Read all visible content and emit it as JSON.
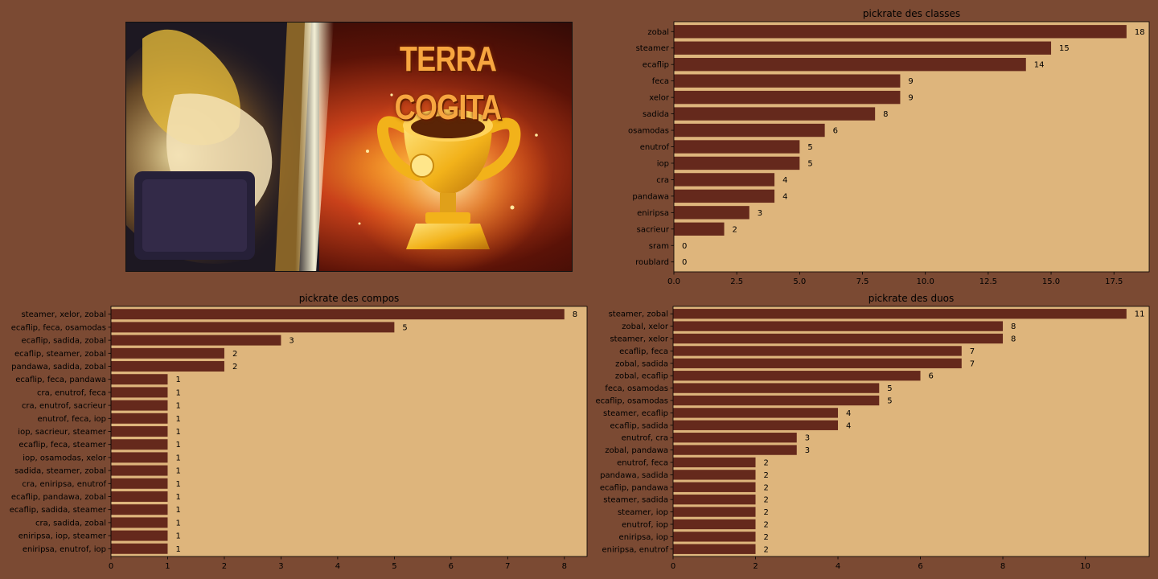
{
  "banner": {
    "title": "TERRA COGITA",
    "icon": "trophy-illustration"
  },
  "colors": {
    "background": "#7b4a33",
    "plot_background": "#deb57c",
    "bar": "#65291c"
  },
  "chart_data": [
    {
      "type": "bar",
      "orientation": "horizontal",
      "title": "pickrate des classes",
      "categories": [
        "zobal",
        "steamer",
        "ecaflip",
        "feca",
        "xelor",
        "sadida",
        "osamodas",
        "enutrof",
        "iop",
        "cra",
        "pandawa",
        "eniripsa",
        "sacrieur",
        "sram",
        "roublard"
      ],
      "values": [
        18,
        15,
        14,
        9,
        9,
        8,
        6,
        5,
        5,
        4,
        4,
        3,
        2,
        0,
        0
      ],
      "xlim": [
        0,
        18.9
      ],
      "xticks": [
        0,
        2.5,
        5,
        7.5,
        10,
        12.5,
        15,
        17.5
      ],
      "xtick_labels": [
        "0.0",
        "2.5",
        "5.0",
        "7.5",
        "10.0",
        "12.5",
        "15.0",
        "17.5"
      ],
      "data_labels": true
    },
    {
      "type": "bar",
      "orientation": "horizontal",
      "title": "pickrate des compos",
      "categories": [
        "steamer, xelor, zobal",
        "ecaflip, feca, osamodas",
        "ecaflip, sadida, zobal",
        "ecaflip, steamer, zobal",
        "pandawa, sadida, zobal",
        "ecaflip, feca, pandawa",
        "cra, enutrof, feca",
        "cra, enutrof, sacrieur",
        "enutrof, feca, iop",
        "iop, sacrieur, steamer",
        "ecaflip, feca, steamer",
        "iop, osamodas, xelor",
        "sadida, steamer, zobal",
        "cra, eniripsa, enutrof",
        "ecaflip, pandawa, zobal",
        "ecaflip, sadida, steamer",
        "cra, sadida, zobal",
        "eniripsa, iop, steamer",
        "eniripsa, enutrof, iop"
      ],
      "values": [
        8,
        5,
        3,
        2,
        2,
        1,
        1,
        1,
        1,
        1,
        1,
        1,
        1,
        1,
        1,
        1,
        1,
        1,
        1
      ],
      "xlim": [
        0,
        8.4
      ],
      "xticks": [
        0,
        1,
        2,
        3,
        4,
        5,
        6,
        7,
        8
      ],
      "xtick_labels": [
        "0",
        "1",
        "2",
        "3",
        "4",
        "5",
        "6",
        "7",
        "8"
      ],
      "data_labels": true
    },
    {
      "type": "bar",
      "orientation": "horizontal",
      "title": "pickrate des duos",
      "categories": [
        "steamer, zobal",
        "zobal, xelor",
        "steamer, xelor",
        "ecaflip, feca",
        "zobal, sadida",
        "zobal, ecaflip",
        "feca, osamodas",
        "ecaflip, osamodas",
        "steamer, ecaflip",
        "ecaflip, sadida",
        "enutrof, cra",
        "zobal, pandawa",
        "enutrof, feca",
        "pandawa, sadida",
        "ecaflip, pandawa",
        "steamer, sadida",
        "steamer, iop",
        "enutrof, iop",
        "eniripsa, iop",
        "eniripsa, enutrof"
      ],
      "values": [
        11,
        8,
        8,
        7,
        7,
        6,
        5,
        5,
        4,
        4,
        3,
        3,
        2,
        2,
        2,
        2,
        2,
        2,
        2,
        2
      ],
      "xlim": [
        0,
        11.55
      ],
      "xticks": [
        0,
        2,
        4,
        6,
        8,
        10
      ],
      "xtick_labels": [
        "0",
        "2",
        "4",
        "6",
        "8",
        "10"
      ],
      "data_labels": true
    }
  ]
}
